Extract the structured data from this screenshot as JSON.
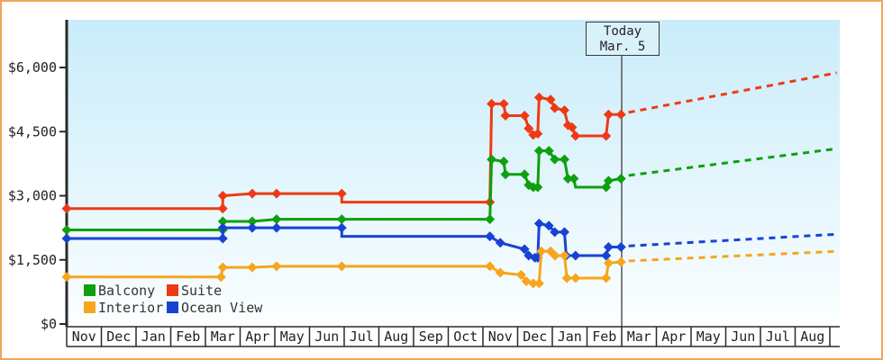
{
  "colors": {
    "frame_border": "#efa65a",
    "axis": "#2a2a2a",
    "text": "#222222",
    "plot_bg_top": "#c9ecfa",
    "plot_bg_bottom": "#fbfeff",
    "today_line": "#555555",
    "today_box_bg": "#d9f1fb",
    "suite": "#ee3a14",
    "balcony": "#0ea00e",
    "ocean_view": "#1843d2",
    "interior": "#f5a61d"
  },
  "today_flag": {
    "line1": "Today",
    "line2": "Mar. 5"
  },
  "legend": {
    "rows": [
      [
        {
          "label": "Balcony",
          "series": "balcony"
        },
        {
          "label": "Suite",
          "series": "suite"
        }
      ],
      [
        {
          "label": "Interior",
          "series": "interior"
        },
        {
          "label": "Ocean View",
          "series": "ocean_view"
        }
      ]
    ]
  },
  "chart_data": {
    "type": "line",
    "title": "",
    "xlabel": "",
    "ylabel": "",
    "grid": false,
    "legend_position": "bottom-left",
    "x_axis": {
      "unit": "month",
      "labels": [
        "Nov",
        "Dec",
        "Jan",
        "Feb",
        "Mar",
        "Apr",
        "May",
        "Jun",
        "Jul",
        "Aug",
        "Sep",
        "Oct",
        "Nov",
        "Dec",
        "Jan",
        "Feb",
        "Mar",
        "Apr",
        "May",
        "Jun",
        "Jul",
        "Aug"
      ]
    },
    "y_axis": {
      "tick_labels": [
        "$0",
        "$1,500",
        "$3,000",
        "$4,500",
        "$6,000"
      ],
      "tick_values": [
        0,
        1500,
        3000,
        4500,
        6000
      ],
      "range": [
        0,
        6400
      ]
    },
    "today": {
      "x_month": 16,
      "label": "Today Mar. 5"
    },
    "series": [
      {
        "name": "Suite",
        "key": "suite",
        "color": "#ee3a14",
        "points": [
          [
            0,
            2700,
            1
          ],
          [
            4.5,
            2700,
            1
          ],
          [
            4.5,
            3000,
            1
          ],
          [
            5.35,
            3050,
            1
          ],
          [
            6.05,
            3050,
            1
          ],
          [
            7.93,
            3050,
            1
          ],
          [
            7.93,
            2850,
            0
          ],
          [
            12.2,
            2850,
            1
          ],
          [
            12.25,
            5150,
            1
          ],
          [
            12.6,
            5150,
            1
          ],
          [
            12.65,
            4875,
            1
          ],
          [
            13.2,
            4875,
            1
          ],
          [
            13.32,
            4575,
            1
          ],
          [
            13.45,
            4425,
            1
          ],
          [
            13.58,
            4450,
            1
          ],
          [
            13.62,
            5300,
            1
          ],
          [
            13.95,
            5250,
            1
          ],
          [
            14.07,
            5050,
            1
          ],
          [
            14.35,
            5000,
            1
          ],
          [
            14.45,
            4650,
            1
          ],
          [
            14.57,
            4600,
            1
          ],
          [
            14.67,
            4400,
            1
          ],
          [
            15.55,
            4400,
            1
          ],
          [
            15.62,
            4900,
            1
          ],
          [
            15.98,
            4900,
            1
          ]
        ],
        "projection": {
          "from": [
            16.2,
            4950
          ],
          "to": [
            22.2,
            5875
          ]
        }
      },
      {
        "name": "Balcony",
        "key": "balcony",
        "color": "#0ea00e",
        "points": [
          [
            0,
            2200,
            1
          ],
          [
            4.5,
            2200,
            1
          ],
          [
            4.5,
            2400,
            1
          ],
          [
            5.35,
            2400,
            1
          ],
          [
            6.05,
            2450,
            1
          ],
          [
            7.93,
            2450,
            1
          ],
          [
            12.2,
            2450,
            1
          ],
          [
            12.25,
            3850,
            1
          ],
          [
            12.6,
            3800,
            1
          ],
          [
            12.65,
            3500,
            1
          ],
          [
            13.2,
            3500,
            1
          ],
          [
            13.32,
            3250,
            1
          ],
          [
            13.45,
            3200,
            1
          ],
          [
            13.58,
            3200,
            1
          ],
          [
            13.62,
            4050,
            1
          ],
          [
            13.9,
            4050,
            1
          ],
          [
            14.07,
            3850,
            1
          ],
          [
            14.35,
            3850,
            1
          ],
          [
            14.45,
            3400,
            1
          ],
          [
            14.62,
            3400,
            1
          ],
          [
            14.67,
            3200,
            0
          ],
          [
            15.55,
            3200,
            1
          ],
          [
            15.62,
            3350,
            1
          ],
          [
            15.98,
            3400,
            1
          ]
        ],
        "projection": {
          "from": [
            16.2,
            3475
          ],
          "to": [
            22.2,
            4100
          ]
        }
      },
      {
        "name": "Ocean View",
        "key": "ocean_view",
        "color": "#1843d2",
        "points": [
          [
            0,
            2000,
            1
          ],
          [
            4.5,
            2000,
            1
          ],
          [
            4.5,
            2250,
            1
          ],
          [
            5.35,
            2250,
            1
          ],
          [
            6.05,
            2250,
            1
          ],
          [
            7.93,
            2250,
            1
          ],
          [
            7.93,
            2050,
            0
          ],
          [
            12.2,
            2050,
            1
          ],
          [
            12.5,
            1900,
            1
          ],
          [
            13.2,
            1750,
            1
          ],
          [
            13.32,
            1600,
            1
          ],
          [
            13.5,
            1550,
            1
          ],
          [
            13.58,
            1550,
            1
          ],
          [
            13.62,
            2350,
            1
          ],
          [
            13.9,
            2300,
            1
          ],
          [
            14.07,
            2150,
            1
          ],
          [
            14.35,
            2150,
            1
          ],
          [
            14.4,
            1600,
            1
          ],
          [
            14.67,
            1600,
            1
          ],
          [
            15.55,
            1600,
            1
          ],
          [
            15.62,
            1800,
            1
          ],
          [
            15.98,
            1800,
            1
          ]
        ],
        "projection": {
          "from": [
            16.2,
            1825
          ],
          "to": [
            22.2,
            2100
          ]
        }
      },
      {
        "name": "Interior",
        "key": "interior",
        "color": "#f5a61d",
        "points": [
          [
            0,
            1100,
            1
          ],
          [
            4.45,
            1100,
            1
          ],
          [
            4.5,
            1325,
            1
          ],
          [
            5.35,
            1325,
            1
          ],
          [
            6.05,
            1350,
            1
          ],
          [
            7.93,
            1350,
            1
          ],
          [
            12.2,
            1350,
            1
          ],
          [
            12.5,
            1200,
            1
          ],
          [
            13.1,
            1150,
            1
          ],
          [
            13.25,
            1000,
            1
          ],
          [
            13.45,
            950,
            1
          ],
          [
            13.62,
            950,
            1
          ],
          [
            13.68,
            1700,
            1
          ],
          [
            13.95,
            1700,
            1
          ],
          [
            14.08,
            1600,
            1
          ],
          [
            14.35,
            1600,
            1
          ],
          [
            14.42,
            1075,
            1
          ],
          [
            14.67,
            1075,
            1
          ],
          [
            15.55,
            1075,
            1
          ],
          [
            15.62,
            1425,
            1
          ],
          [
            15.98,
            1450,
            1
          ]
        ],
        "projection": {
          "from": [
            16.2,
            1475
          ],
          "to": [
            22.2,
            1700
          ]
        }
      }
    ]
  }
}
